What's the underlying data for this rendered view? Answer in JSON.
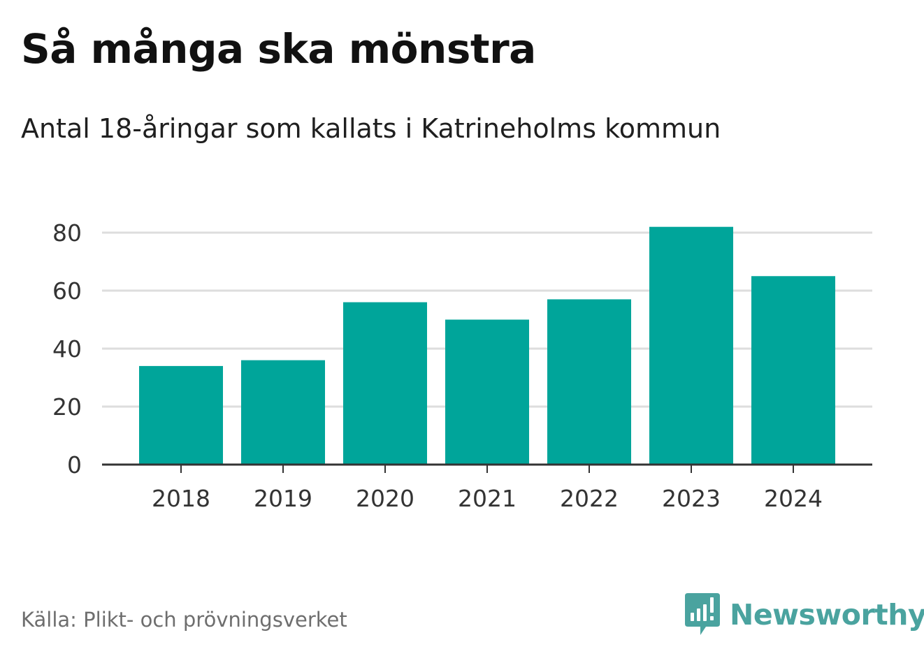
{
  "header": {
    "title": "Så många ska mönstra",
    "subtitle": "Antal 18-åringar som kallats i Katrineholms kommun"
  },
  "footer": {
    "source": "Källa: Plikt- och prövningsverket",
    "brand_name": "Newsworthy",
    "brand_icon": "newsworthy-logo-icon"
  },
  "colors": {
    "bar": "#00a59a",
    "grid": "#dddddd",
    "axis": "#333333",
    "brand": "#4aa39f"
  },
  "chart_data": {
    "type": "bar",
    "title": "Så många ska mönstra",
    "subtitle": "Antal 18-åringar som kallats i Katrineholms kommun",
    "xlabel": "",
    "ylabel": "",
    "categories": [
      "2018",
      "2019",
      "2020",
      "2021",
      "2022",
      "2023",
      "2024"
    ],
    "values": [
      34,
      36,
      56,
      50,
      57,
      82,
      65
    ],
    "ylim": [
      0,
      80
    ],
    "yticks": [
      0,
      20,
      40,
      60,
      80
    ],
    "ytick_labels": [
      "0",
      "20",
      "40",
      "60",
      "80"
    ],
    "grid": true,
    "legend": "none"
  }
}
